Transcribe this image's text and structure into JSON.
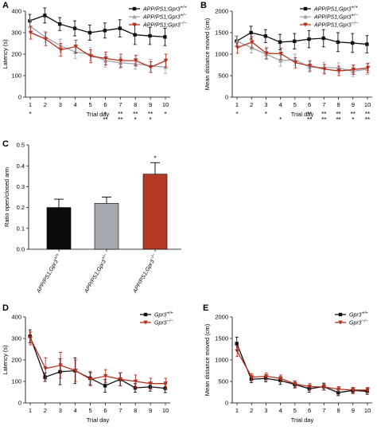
{
  "colors": {
    "black": "#111111",
    "gray": "#9ca3ab",
    "red": "#b5311f",
    "bar_black": "#0a0a0a",
    "bar_gray": "#a5aab1",
    "bar_red": "#b23a25"
  },
  "chart_data": [
    {
      "panel": "A",
      "type": "line",
      "xlabel": "Trial day",
      "ylabel": "Latency (s)",
      "x": [
        1,
        2,
        3,
        4,
        5,
        6,
        7,
        8,
        9,
        10
      ],
      "ylim": [
        0,
        400
      ],
      "yticks": [
        "0",
        "100",
        "200",
        "300",
        "400"
      ],
      "legend_placement": "top-right",
      "series": [
        {
          "name": "APP/PS1;Gpr3+/+",
          "color": "black",
          "values": [
            355,
            380,
            340,
            320,
            300,
            310,
            320,
            290,
            285,
            280
          ],
          "err": [
            30,
            35,
            30,
            35,
            35,
            35,
            40,
            45,
            40,
            40
          ]
        },
        {
          "name": "APP/PS1;Gpr3+/-",
          "color": "gray",
          "values": [
            330,
            280,
            240,
            210,
            200,
            170,
            160,
            155,
            145,
            140
          ],
          "err": [
            30,
            25,
            30,
            30,
            30,
            30,
            25,
            25,
            30,
            30
          ]
        },
        {
          "name": "APP/PS1;Gpr3-/-",
          "color": "red",
          "values": [
            300,
            270,
            220,
            235,
            190,
            180,
            170,
            170,
            140,
            170
          ],
          "err": [
            30,
            30,
            30,
            30,
            30,
            30,
            30,
            25,
            25,
            30
          ]
        }
      ],
      "sig_gray": [
        [
          "*"
        ],
        [],
        [],
        [],
        [],
        [
          "*"
        ],
        [
          "*",
          "*"
        ],
        [
          "*",
          "*"
        ],
        [
          "*",
          "*"
        ],
        [
          "*"
        ]
      ],
      "sig_red": [
        [],
        [],
        [],
        [],
        [],
        [
          "*",
          "*"
        ],
        [
          "*",
          "*"
        ],
        [
          "*"
        ],
        [
          "*"
        ],
        []
      ]
    },
    {
      "panel": "B",
      "type": "line",
      "xlabel": "Trial day",
      "ylabel": "Mean distance moved (cm)",
      "x": [
        1,
        2,
        3,
        4,
        5,
        6,
        7,
        8,
        9,
        10
      ],
      "ylim": [
        0,
        2000
      ],
      "yticks": [
        "0",
        "500",
        "1000",
        "1500",
        "2000"
      ],
      "legend_placement": "top-right",
      "series": [
        {
          "name": "APP/PS1;Gpr3+/+",
          "color": "black",
          "values": [
            1300,
            1500,
            1420,
            1280,
            1300,
            1350,
            1370,
            1280,
            1260,
            1230
          ],
          "err": [
            120,
            150,
            150,
            180,
            180,
            200,
            200,
            220,
            220,
            200
          ]
        },
        {
          "name": "APP/PS1;Gpr3+/-",
          "color": "gray",
          "values": [
            1300,
            1150,
            1000,
            850,
            870,
            700,
            690,
            680,
            600,
            650
          ],
          "err": [
            120,
            120,
            120,
            130,
            130,
            120,
            120,
            120,
            120,
            120
          ]
        },
        {
          "name": "APP/PS1;Gpr3-/-",
          "color": "red",
          "values": [
            1150,
            1280,
            1020,
            1010,
            800,
            730,
            650,
            610,
            640,
            680
          ],
          "err": [
            130,
            130,
            130,
            130,
            120,
            120,
            110,
            110,
            110,
            110
          ]
        }
      ],
      "sig_gray": [
        [
          "*"
        ],
        [],
        [
          "*"
        ],
        [],
        [],
        [
          "*",
          "*"
        ],
        [
          "*",
          "*"
        ],
        [
          "*",
          "*"
        ],
        [
          "*",
          "*"
        ],
        [
          "*",
          "*"
        ]
      ],
      "sig_red": [
        [],
        [],
        [],
        [
          "*"
        ],
        [],
        [
          "*",
          "*"
        ],
        [
          "*",
          "*"
        ],
        [
          "*",
          "*"
        ],
        [
          "*"
        ],
        [
          "*",
          "*"
        ]
      ]
    },
    {
      "panel": "C",
      "type": "bar",
      "ylabel": "Ratio open/closed arm",
      "categories": [
        "APP/PS1;Gpr3+/+",
        "APP/PS1;Gpr3+/-",
        "APP/PS1;Gpr3-/-"
      ],
      "values": [
        0.2,
        0.22,
        0.36
      ],
      "err": [
        0.04,
        0.03,
        0.055
      ],
      "colors": [
        "bar_black",
        "bar_gray",
        "bar_red"
      ],
      "sig": [
        "",
        "",
        "*"
      ],
      "ylim": [
        0,
        0.5
      ],
      "yticks": [
        "0.0",
        "0.1",
        "0.2",
        "0.3",
        "0.4",
        "0.5"
      ]
    },
    {
      "panel": "D",
      "type": "line",
      "xlabel": "Trial day",
      "ylabel": "Latency (s)",
      "x": [
        1,
        2,
        3,
        4,
        5,
        6,
        7,
        8,
        9,
        10
      ],
      "ylim": [
        0,
        400
      ],
      "yticks": [
        "0",
        "100",
        "200",
        "300",
        "400"
      ],
      "legend_placement": "top-right",
      "series": [
        {
          "name": "Gpr3+/+",
          "color": "black",
          "values": [
            310,
            120,
            145,
            150,
            115,
            80,
            110,
            70,
            75,
            68
          ],
          "err": [
            30,
            20,
            60,
            60,
            30,
            30,
            30,
            20,
            20,
            20
          ]
        },
        {
          "name": "Gpr3-/-",
          "color": "red",
          "values": [
            300,
            160,
            175,
            150,
            110,
            125,
            110,
            100,
            90,
            90
          ],
          "err": [
            30,
            50,
            60,
            50,
            30,
            30,
            30,
            30,
            25,
            25
          ]
        }
      ]
    },
    {
      "panel": "E",
      "type": "line",
      "xlabel": "Trial day",
      "ylabel": "Mean distance moved (cm)",
      "x": [
        1,
        2,
        3,
        4,
        5,
        6,
        7,
        8,
        9,
        10
      ],
      "ylim": [
        0,
        2000
      ],
      "yticks": [
        "0",
        "500",
        "1000",
        "1500",
        "2000"
      ],
      "legend_placement": "top-right",
      "series": [
        {
          "name": "Gpr3+/+",
          "color": "black",
          "values": [
            1380,
            550,
            570,
            520,
            430,
            330,
            380,
            240,
            290,
            270
          ],
          "err": [
            150,
            80,
            80,
            90,
            80,
            80,
            80,
            70,
            70,
            70
          ]
        },
        {
          "name": "Gpr3-/-",
          "color": "red",
          "values": [
            1200,
            600,
            620,
            570,
            440,
            380,
            370,
            320,
            300,
            300
          ],
          "err": [
            120,
            80,
            80,
            80,
            70,
            70,
            70,
            60,
            60,
            60
          ]
        }
      ]
    }
  ]
}
